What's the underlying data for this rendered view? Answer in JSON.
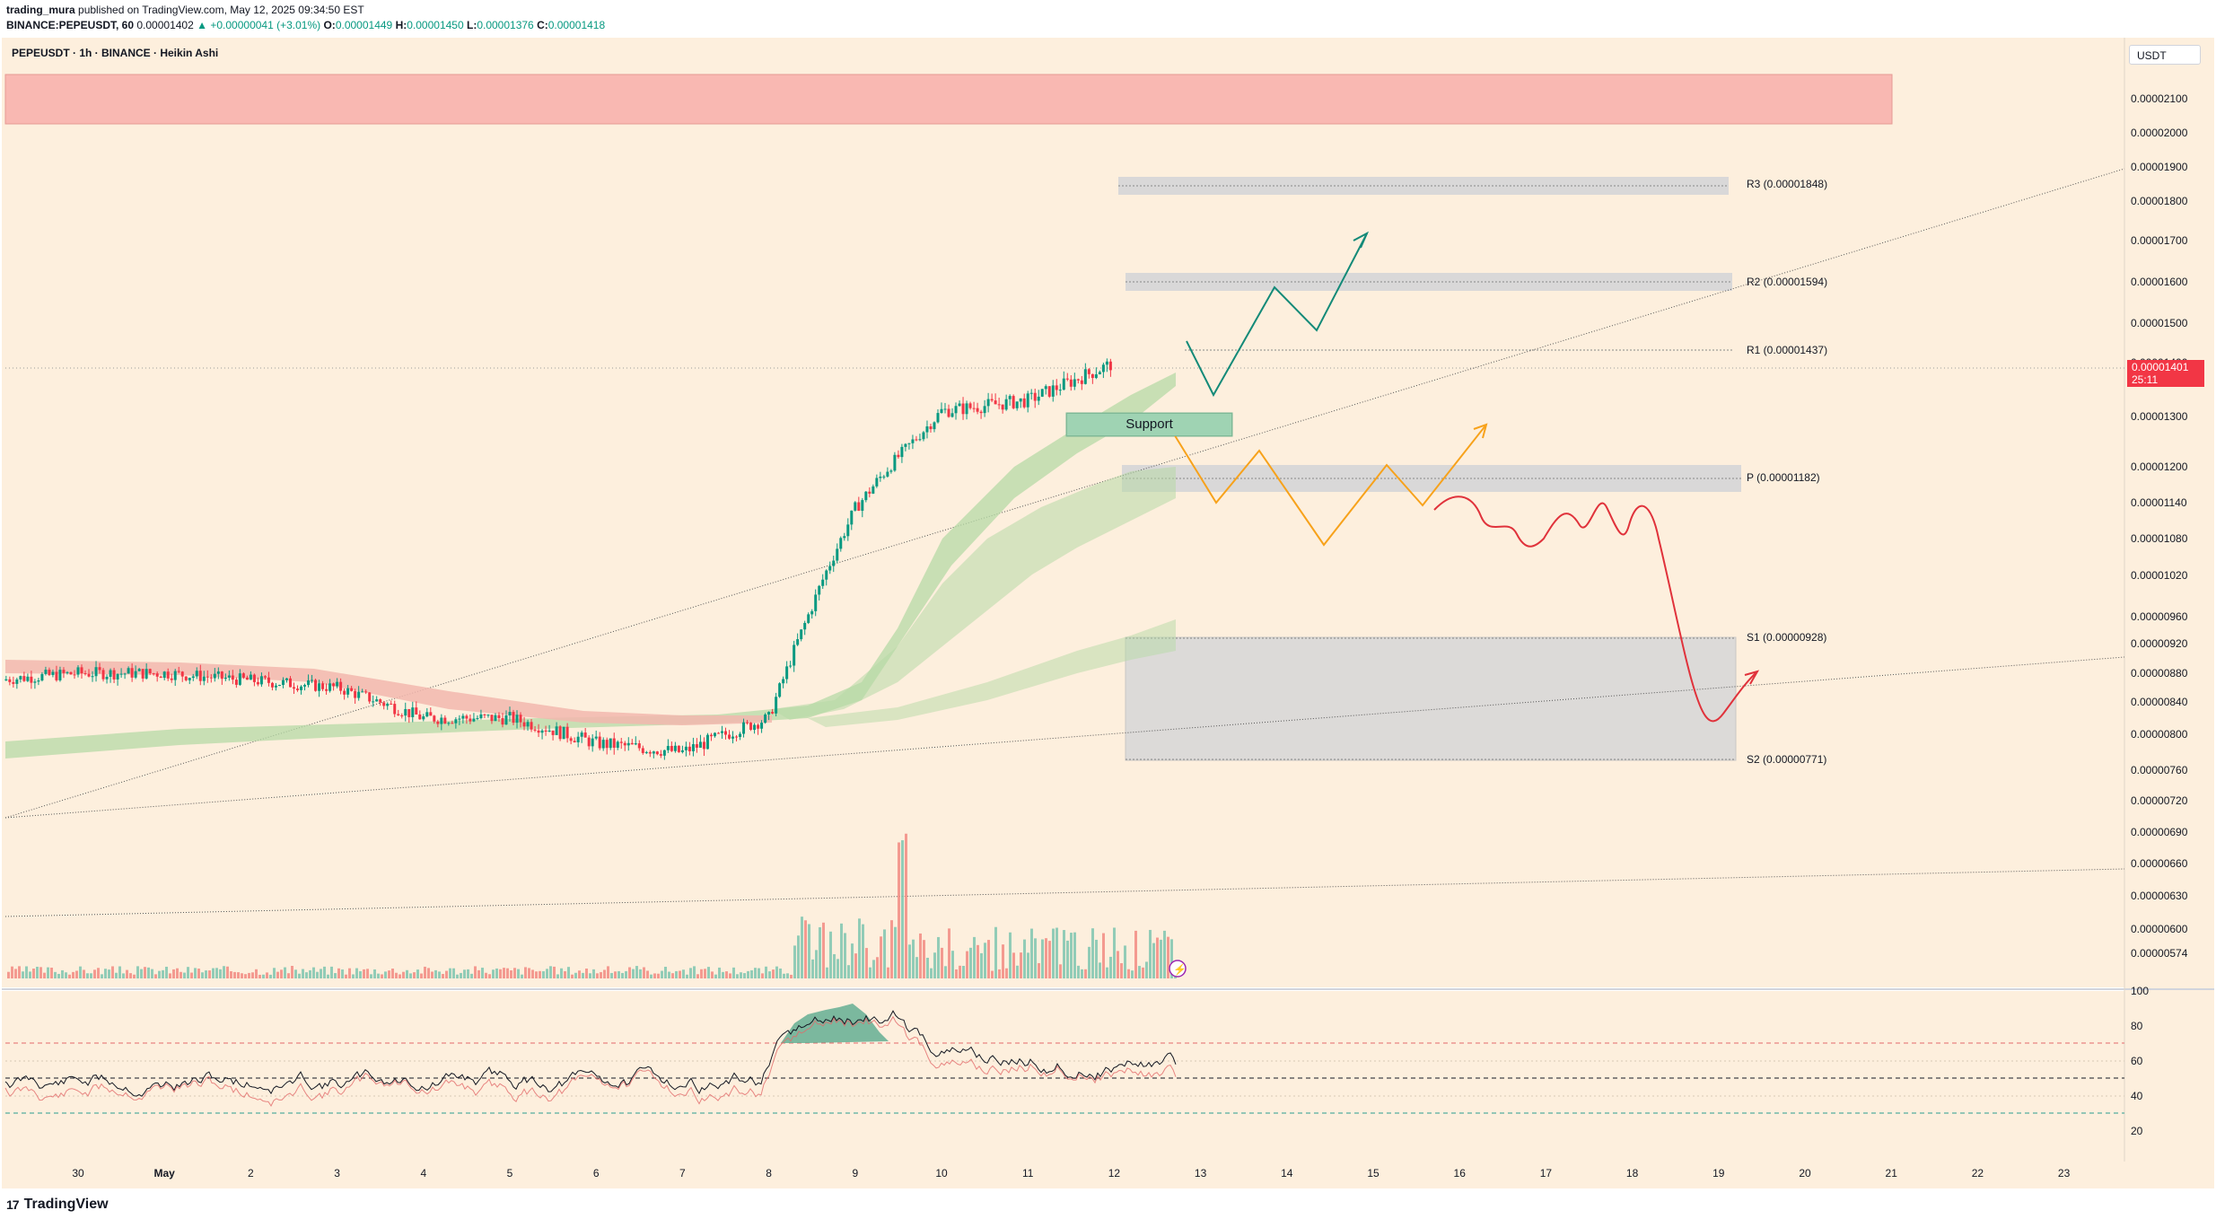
{
  "header": {
    "author": "trading_mura",
    "published_text": "published on TradingView.com, May 12, 2025 09:34:50 EST",
    "symbol_line": "BINANCE:PEPEUSDT, 60",
    "last": "0.00001402",
    "change": "+0.00000041 (+3.01%)",
    "open_label": "O:",
    "open": "0.00001449",
    "high_label": "H:",
    "high": "0.00001450",
    "low_label": "L:",
    "low": "0.00001376",
    "close_label": "C:",
    "close": "0.00001418"
  },
  "chart_title": "PEPEUSDT · 1h · BINANCE · Heikin Ashi",
  "currency_button": "USDT",
  "price_tag": {
    "price": "0.00001401",
    "countdown": "25:11",
    "color": "#f23645"
  },
  "support_label": "Support",
  "footer": {
    "brand": "TradingView",
    "logo_mark": "17"
  },
  "colors": {
    "background": "#fdefdd",
    "up": "#089981",
    "down": "#f23645",
    "supply_zone": "#f9b8b2",
    "level_box": "#d9d8d8",
    "support_box": "#9fd3b3",
    "ema_band_green": "#b6d9a6",
    "ema_band_red": "#f2b7ae",
    "projection_green": "#138a78",
    "projection_orange": "#f7a21b",
    "projection_red": "#e0323b"
  },
  "chart_data": {
    "type": "line",
    "title": "PEPEUSDT · 1h · BINANCE · Heikin Ashi",
    "y_axis_ticks": [
      "0.00002100",
      "0.00002000",
      "0.00001900",
      "0.00001800",
      "0.00001700",
      "0.00001600",
      "0.00001500",
      "0.00001400",
      "0.00001300",
      "0.00001200",
      "0.00001140",
      "0.00001080",
      "0.00001020",
      "0.00000960",
      "0.00000920",
      "0.00000880",
      "0.00000840",
      "0.00000800",
      "0.00000760",
      "0.00000720",
      "0.00000690",
      "0.00000660",
      "0.00000630",
      "0.00000600",
      "0.00000574"
    ],
    "x_axis_ticks": [
      "30",
      "May",
      "2",
      "3",
      "4",
      "5",
      "6",
      "7",
      "8",
      "9",
      "10",
      "11",
      "12",
      "13",
      "14",
      "15",
      "16",
      "17",
      "18",
      "19",
      "20",
      "21",
      "22",
      "23"
    ],
    "rsi_ticks": [
      "100",
      "80",
      "60",
      "40",
      "20"
    ],
    "levels": [
      {
        "name": "R3",
        "label": "R3 (0.00001848)",
        "value": 1.848e-05
      },
      {
        "name": "R2",
        "label": "R2 (0.00001594)",
        "value": 1.594e-05
      },
      {
        "name": "R1",
        "label": "R1 (0.00001437)",
        "value": 1.437e-05
      },
      {
        "name": "P",
        "label": "P (0.00001182)",
        "value": 1.182e-05
      },
      {
        "name": "S1",
        "label": "S1 (0.00000928)",
        "value": 9.28e-06
      },
      {
        "name": "S2",
        "label": "S2 (0.00000771)",
        "value": 7.71e-06
      }
    ],
    "zones": [
      {
        "name": "supply",
        "from": 2.01e-05,
        "to": 2.18e-05
      },
      {
        "name": "support",
        "label": "Support",
        "from": 1.28e-05,
        "to": 1.31e-05
      }
    ],
    "current_price": 1.401e-05,
    "price_path": [
      {
        "date": "2025-04-29",
        "close": 8.7e-06
      },
      {
        "date": "2025-04-30",
        "close": 8.8e-06
      },
      {
        "date": "2025-05-01",
        "close": 8.8e-06
      },
      {
        "date": "2025-05-02",
        "close": 8.7e-06
      },
      {
        "date": "2025-05-03",
        "close": 8.6e-06
      },
      {
        "date": "2025-05-04",
        "close": 8.2e-06
      },
      {
        "date": "2025-05-05",
        "close": 8.2e-06
      },
      {
        "date": "2025-05-06",
        "close": 7.9e-06
      },
      {
        "date": "2025-05-07",
        "close": 7.8e-06
      },
      {
        "date": "2025-05-08",
        "close": 8.2e-06
      },
      {
        "date": "2025-05-09",
        "close": 1.13e-05
      },
      {
        "date": "2025-05-10",
        "close": 1.31e-05
      },
      {
        "date": "2025-05-11",
        "close": 1.33e-05
      },
      {
        "date": "2025-05-12",
        "close": 1.4e-05
      }
    ],
    "rsi_levels": [
      70,
      50,
      30
    ],
    "series": []
  }
}
